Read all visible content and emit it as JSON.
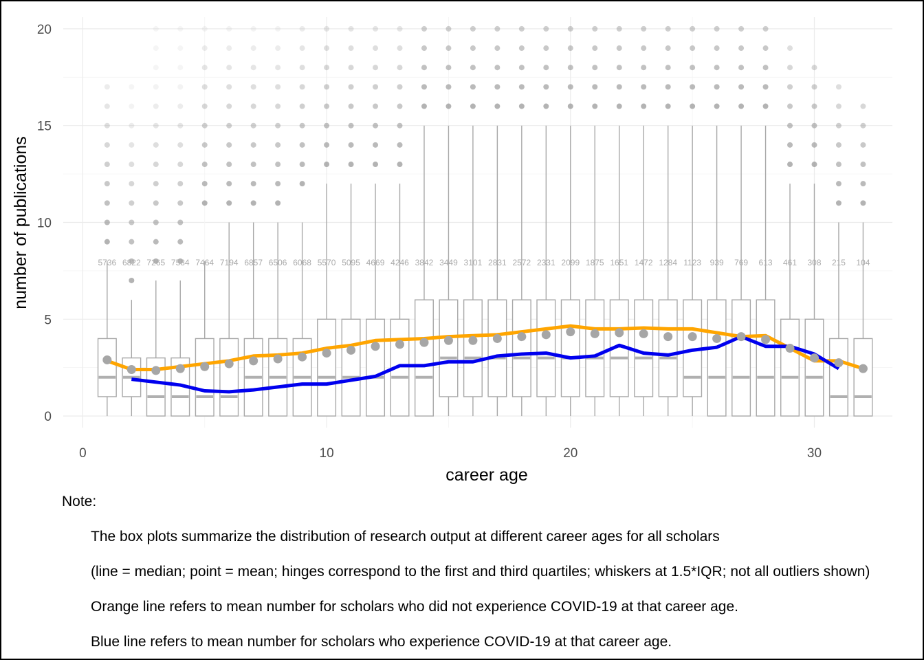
{
  "chart_data": {
    "type": "box",
    "xlabel": "career age",
    "ylabel": "number of publications",
    "xlim": [
      -0.8,
      33.2
    ],
    "ylim": [
      -0.6,
      20.6
    ],
    "x_ticks": [
      0,
      10,
      20,
      30
    ],
    "y_ticks": [
      0,
      5,
      10,
      15,
      20
    ],
    "grid": true,
    "colors": {
      "box": "#a8a8a8",
      "mean_point": "#a6a6a6",
      "no_covid_line": "#ffa500",
      "covid_line": "#0000ee",
      "outlier": "#9a9a9a",
      "grid": "#ebebeb"
    },
    "boxes": [
      {
        "x": 1,
        "q1": 1,
        "median": 2,
        "q3": 4,
        "whisker_low": 0,
        "whisker_high": 8,
        "mean": 2.9,
        "n": "5736"
      },
      {
        "x": 2,
        "q1": 1,
        "median": 2,
        "q3": 3,
        "whisker_low": 0,
        "whisker_high": 6,
        "mean": 2.4,
        "n": "6822"
      },
      {
        "x": 3,
        "q1": 0,
        "median": 1,
        "q3": 3,
        "whisker_low": 0,
        "whisker_high": 7,
        "mean": 2.35,
        "n": "7265"
      },
      {
        "x": 4,
        "q1": 0,
        "median": 1,
        "q3": 3,
        "whisker_low": 0,
        "whisker_high": 7,
        "mean": 2.45,
        "n": "7584"
      },
      {
        "x": 5,
        "q1": 0,
        "median": 1,
        "q3": 4,
        "whisker_low": 0,
        "whisker_high": 8,
        "mean": 2.55,
        "n": "7464"
      },
      {
        "x": 6,
        "q1": 0,
        "median": 1,
        "q3": 4,
        "whisker_low": 0,
        "whisker_high": 10,
        "mean": 2.7,
        "n": "7194"
      },
      {
        "x": 7,
        "q1": 0,
        "median": 2,
        "q3": 4,
        "whisker_low": 0,
        "whisker_high": 10,
        "mean": 2.85,
        "n": "6857"
      },
      {
        "x": 8,
        "q1": 0,
        "median": 2,
        "q3": 4,
        "whisker_low": 0,
        "whisker_high": 10,
        "mean": 2.95,
        "n": "6506"
      },
      {
        "x": 9,
        "q1": 0,
        "median": 2,
        "q3": 4,
        "whisker_low": 0,
        "whisker_high": 10,
        "mean": 3.05,
        "n": "6068"
      },
      {
        "x": 10,
        "q1": 0,
        "median": 2,
        "q3": 5,
        "whisker_low": 0,
        "whisker_high": 12,
        "mean": 3.25,
        "n": "5570"
      },
      {
        "x": 11,
        "q1": 0,
        "median": 2,
        "q3": 5,
        "whisker_low": 0,
        "whisker_high": 12,
        "mean": 3.4,
        "n": "5095"
      },
      {
        "x": 12,
        "q1": 0,
        "median": 2,
        "q3": 5,
        "whisker_low": 0,
        "whisker_high": 12,
        "mean": 3.6,
        "n": "4669"
      },
      {
        "x": 13,
        "q1": 0,
        "median": 2,
        "q3": 5,
        "whisker_low": 0,
        "whisker_high": 12,
        "mean": 3.7,
        "n": "4246"
      },
      {
        "x": 14,
        "q1": 0,
        "median": 2,
        "q3": 6,
        "whisker_low": 0,
        "whisker_high": 15,
        "mean": 3.8,
        "n": "3842"
      },
      {
        "x": 15,
        "q1": 1,
        "median": 3,
        "q3": 6,
        "whisker_low": 0,
        "whisker_high": 15,
        "mean": 3.9,
        "n": "3449"
      },
      {
        "x": 16,
        "q1": 1,
        "median": 3,
        "q3": 6,
        "whisker_low": 0,
        "whisker_high": 15,
        "mean": 3.9,
        "n": "3101"
      },
      {
        "x": 17,
        "q1": 1,
        "median": 3,
        "q3": 6,
        "whisker_low": 0,
        "whisker_high": 15,
        "mean": 4.0,
        "n": "2831"
      },
      {
        "x": 18,
        "q1": 1,
        "median": 3,
        "q3": 6,
        "whisker_low": 0,
        "whisker_high": 15,
        "mean": 4.1,
        "n": "2572"
      },
      {
        "x": 19,
        "q1": 1,
        "median": 3,
        "q3": 6,
        "whisker_low": 0,
        "whisker_high": 15,
        "mean": 4.2,
        "n": "2331"
      },
      {
        "x": 20,
        "q1": 1,
        "median": 3,
        "q3": 6,
        "whisker_low": 0,
        "whisker_high": 15,
        "mean": 4.35,
        "n": "2099"
      },
      {
        "x": 21,
        "q1": 1,
        "median": 3,
        "q3": 6,
        "whisker_low": 0,
        "whisker_high": 15,
        "mean": 4.25,
        "n": "1875"
      },
      {
        "x": 22,
        "q1": 1,
        "median": 3,
        "q3": 6,
        "whisker_low": 0,
        "whisker_high": 15,
        "mean": 4.3,
        "n": "1651"
      },
      {
        "x": 23,
        "q1": 1,
        "median": 3,
        "q3": 6,
        "whisker_low": 0,
        "whisker_high": 15,
        "mean": 4.25,
        "n": "1472"
      },
      {
        "x": 24,
        "q1": 1,
        "median": 3,
        "q3": 6,
        "whisker_low": 0,
        "whisker_high": 15,
        "mean": 4.1,
        "n": "1284"
      },
      {
        "x": 25,
        "q1": 1,
        "median": 2,
        "q3": 6,
        "whisker_low": 0,
        "whisker_high": 15,
        "mean": 4.1,
        "n": "1123"
      },
      {
        "x": 26,
        "q1": 0,
        "median": 2,
        "q3": 6,
        "whisker_low": 0,
        "whisker_high": 15,
        "mean": 4.0,
        "n": "939"
      },
      {
        "x": 27,
        "q1": 0,
        "median": 2,
        "q3": 6,
        "whisker_low": 0,
        "whisker_high": 15,
        "mean": 4.1,
        "n": "769"
      },
      {
        "x": 28,
        "q1": 0,
        "median": 2,
        "q3": 6,
        "whisker_low": 0,
        "whisker_high": 15,
        "mean": 3.95,
        "n": "613"
      },
      {
        "x": 29,
        "q1": 0,
        "median": 2,
        "q3": 5,
        "whisker_low": 0,
        "whisker_high": 12,
        "mean": 3.5,
        "n": "461"
      },
      {
        "x": 30,
        "q1": 0,
        "median": 2,
        "q3": 5,
        "whisker_low": 0,
        "whisker_high": 12,
        "mean": 3.0,
        "n": "308"
      },
      {
        "x": 31,
        "q1": 0,
        "median": 1,
        "q3": 4,
        "whisker_low": 0,
        "whisker_high": 10,
        "mean": 2.75,
        "n": "215"
      },
      {
        "x": 32,
        "q1": 0,
        "median": 1,
        "q3": 4,
        "whisker_low": 0,
        "whisker_high": 10,
        "mean": 2.45,
        "n": "104"
      }
    ],
    "series": [
      {
        "x": [
          1,
          2,
          3,
          4,
          5,
          6,
          7,
          8,
          9,
          10,
          11,
          12,
          13,
          14,
          15,
          16,
          17,
          18,
          19,
          20,
          21,
          22,
          23,
          24,
          25,
          26,
          27,
          28,
          29,
          30,
          31,
          32
        ],
        "values": [
          2.85,
          2.4,
          2.4,
          2.55,
          2.7,
          2.85,
          3.1,
          3.15,
          3.25,
          3.5,
          3.65,
          3.9,
          3.95,
          4.0,
          4.1,
          4.15,
          4.2,
          4.35,
          4.5,
          4.65,
          4.5,
          4.5,
          4.55,
          4.5,
          4.5,
          4.3,
          4.1,
          4.15,
          3.5,
          2.85,
          2.85,
          2.45
        ]
      },
      {
        "x": [
          2,
          3,
          4,
          5,
          6,
          7,
          8,
          9,
          10,
          11,
          12,
          13,
          14,
          15,
          16,
          17,
          18,
          19,
          20,
          21,
          22,
          23,
          24,
          25,
          26,
          27,
          28,
          29,
          30,
          31
        ],
        "values": [
          1.9,
          1.75,
          1.6,
          1.3,
          1.25,
          1.35,
          1.5,
          1.65,
          1.65,
          1.85,
          2.05,
          2.6,
          2.6,
          2.8,
          2.8,
          3.1,
          3.2,
          3.25,
          3.0,
          3.1,
          3.65,
          3.25,
          3.15,
          3.4,
          3.55,
          4.1,
          3.6,
          3.6,
          3.2,
          2.45
        ]
      }
    ],
    "outliers": {
      "1": [
        9,
        10,
        11,
        12,
        13,
        14,
        15,
        16,
        17
      ],
      "2": [
        7,
        8,
        9,
        10,
        11,
        12,
        13,
        14,
        15,
        16,
        17
      ],
      "3": [
        8,
        9,
        10,
        11,
        12,
        13,
        14,
        15,
        16,
        17,
        18,
        19,
        20
      ],
      "4": [
        8,
        9,
        10,
        11,
        12,
        13,
        14,
        15,
        16,
        17,
        18,
        19,
        20
      ],
      "5": [
        11,
        12,
        13,
        14,
        15,
        16,
        17,
        18,
        19,
        20
      ],
      "6": [
        11,
        12,
        13,
        14,
        15,
        16,
        17,
        18,
        19,
        20
      ],
      "7": [
        11,
        12,
        13,
        14,
        15,
        16,
        17,
        18,
        19,
        20
      ],
      "8": [
        11,
        12,
        13,
        14,
        15,
        16,
        17,
        18,
        19,
        20
      ],
      "9": [
        12,
        13,
        14,
        15,
        16,
        17,
        18,
        19,
        20
      ],
      "10": [
        13,
        14,
        15,
        16,
        17,
        18,
        19,
        20
      ],
      "11": [
        13,
        14,
        15,
        16,
        17,
        18,
        19,
        20
      ],
      "12": [
        13,
        14,
        15,
        16,
        17,
        18,
        19,
        20
      ],
      "13": [
        13,
        14,
        15,
        16,
        17,
        18,
        19,
        20
      ],
      "14": [
        16,
        17,
        18,
        19,
        20
      ],
      "15": [
        16,
        17,
        18,
        19,
        20
      ],
      "16": [
        16,
        17,
        18,
        19,
        20
      ],
      "17": [
        16,
        17,
        18,
        19,
        20
      ],
      "18": [
        16,
        17,
        18,
        19,
        20
      ],
      "19": [
        16,
        17,
        18,
        19,
        20
      ],
      "20": [
        16,
        17,
        18,
        19,
        20
      ],
      "21": [
        16,
        17,
        18,
        19,
        20
      ],
      "22": [
        16,
        17,
        18,
        19,
        20
      ],
      "23": [
        16,
        17,
        18,
        19,
        20
      ],
      "24": [
        16,
        17,
        18,
        19,
        20
      ],
      "25": [
        16,
        17,
        18,
        19,
        20
      ],
      "26": [
        16,
        17,
        18,
        19,
        20
      ],
      "27": [
        16,
        17,
        18,
        19,
        20
      ],
      "28": [
        16,
        17,
        18,
        19,
        20
      ],
      "29": [
        13,
        14,
        15,
        16,
        17,
        18,
        19
      ],
      "30": [
        13,
        14,
        15,
        16,
        17,
        18
      ],
      "31": [
        11,
        12,
        13,
        14,
        15,
        16,
        17
      ],
      "32": [
        11,
        12,
        13,
        14,
        15,
        16
      ]
    }
  },
  "notes": {
    "heading": "Note:",
    "lines": [
      "The box plots summarize the distribution of research output at different career ages for all scholars",
      "(line = median; point = mean; hinges correspond to the first and third quartiles; whiskers at 1.5*IQR; not all outliers shown)",
      "Orange line refers to mean number for scholars who did not experience COVID-19 at that career age.",
      "Blue line refers to mean number for scholars who experience COVID-19 at that career age."
    ]
  }
}
